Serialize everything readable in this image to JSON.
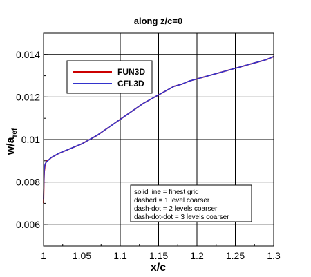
{
  "chart_data": {
    "type": "line",
    "title": "along z/c=0",
    "xlabel": "x/c",
    "ylabel_main": "w/a",
    "ylabel_sub": "ref",
    "xlim": [
      1.0,
      1.3
    ],
    "ylim": [
      0.005,
      0.015
    ],
    "xticks": [
      1,
      1.05,
      1.1,
      1.15,
      1.2,
      1.25,
      1.3
    ],
    "xtick_labels": [
      "1",
      "1.05",
      "1.1",
      "1.15",
      "1.2",
      "1.25",
      "1.3"
    ],
    "yticks": [
      0.006,
      0.008,
      0.01,
      0.012,
      0.014
    ],
    "ytick_labels": [
      "0.006",
      "0.008",
      "0.01",
      "0.012",
      "0.014"
    ],
    "grid": true,
    "legend_placement": "upper-left",
    "series": [
      {
        "name": "FUN3D",
        "color": "#cc0000",
        "x": [
          1.0,
          1.0005,
          1.001,
          1.002,
          1.004,
          1.007,
          1.01,
          1.015,
          1.02,
          1.03,
          1.04,
          1.05,
          1.06,
          1.07,
          1.08,
          1.09,
          1.1,
          1.11,
          1.12,
          1.13,
          1.14,
          1.15,
          1.16,
          1.17,
          1.18,
          1.19,
          1.2,
          1.21,
          1.22,
          1.23,
          1.24,
          1.25,
          1.26,
          1.27,
          1.28,
          1.29,
          1.3
        ],
        "y": [
          0.007,
          0.008,
          0.0085,
          0.0088,
          0.009,
          0.00905,
          0.00915,
          0.00925,
          0.00935,
          0.0095,
          0.00965,
          0.0098,
          0.01,
          0.0102,
          0.01045,
          0.0107,
          0.01095,
          0.0112,
          0.01145,
          0.0117,
          0.0119,
          0.0121,
          0.0123,
          0.0125,
          0.0126,
          0.01275,
          0.01285,
          0.01295,
          0.01305,
          0.01315,
          0.01325,
          0.01335,
          0.01345,
          0.01355,
          0.01365,
          0.01375,
          0.0139
        ]
      },
      {
        "name": "CFL3D",
        "color": "#3333cc",
        "x": [
          1.0,
          1.0005,
          1.001,
          1.002,
          1.004,
          1.007,
          1.01,
          1.015,
          1.02,
          1.03,
          1.04,
          1.05,
          1.06,
          1.07,
          1.08,
          1.09,
          1.1,
          1.11,
          1.12,
          1.13,
          1.14,
          1.15,
          1.16,
          1.17,
          1.18,
          1.19,
          1.2,
          1.21,
          1.22,
          1.23,
          1.24,
          1.25,
          1.26,
          1.27,
          1.28,
          1.29,
          1.3
        ],
        "y": [
          0.0072,
          0.0081,
          0.0086,
          0.00885,
          0.00895,
          0.00905,
          0.00915,
          0.00925,
          0.00935,
          0.0095,
          0.00965,
          0.0098,
          0.01,
          0.0102,
          0.01045,
          0.0107,
          0.01095,
          0.0112,
          0.01145,
          0.0117,
          0.0119,
          0.0121,
          0.0123,
          0.0125,
          0.0126,
          0.01275,
          0.01285,
          0.01295,
          0.01305,
          0.01315,
          0.01325,
          0.01335,
          0.01345,
          0.01355,
          0.01365,
          0.01375,
          0.0139
        ]
      }
    ],
    "annotation_lines": [
      "solid line = finest grid",
      "dashed = 1 level coarser",
      "dash-dot = 2 levels coarser",
      "dash-dot-dot = 3 levels coarser"
    ]
  }
}
